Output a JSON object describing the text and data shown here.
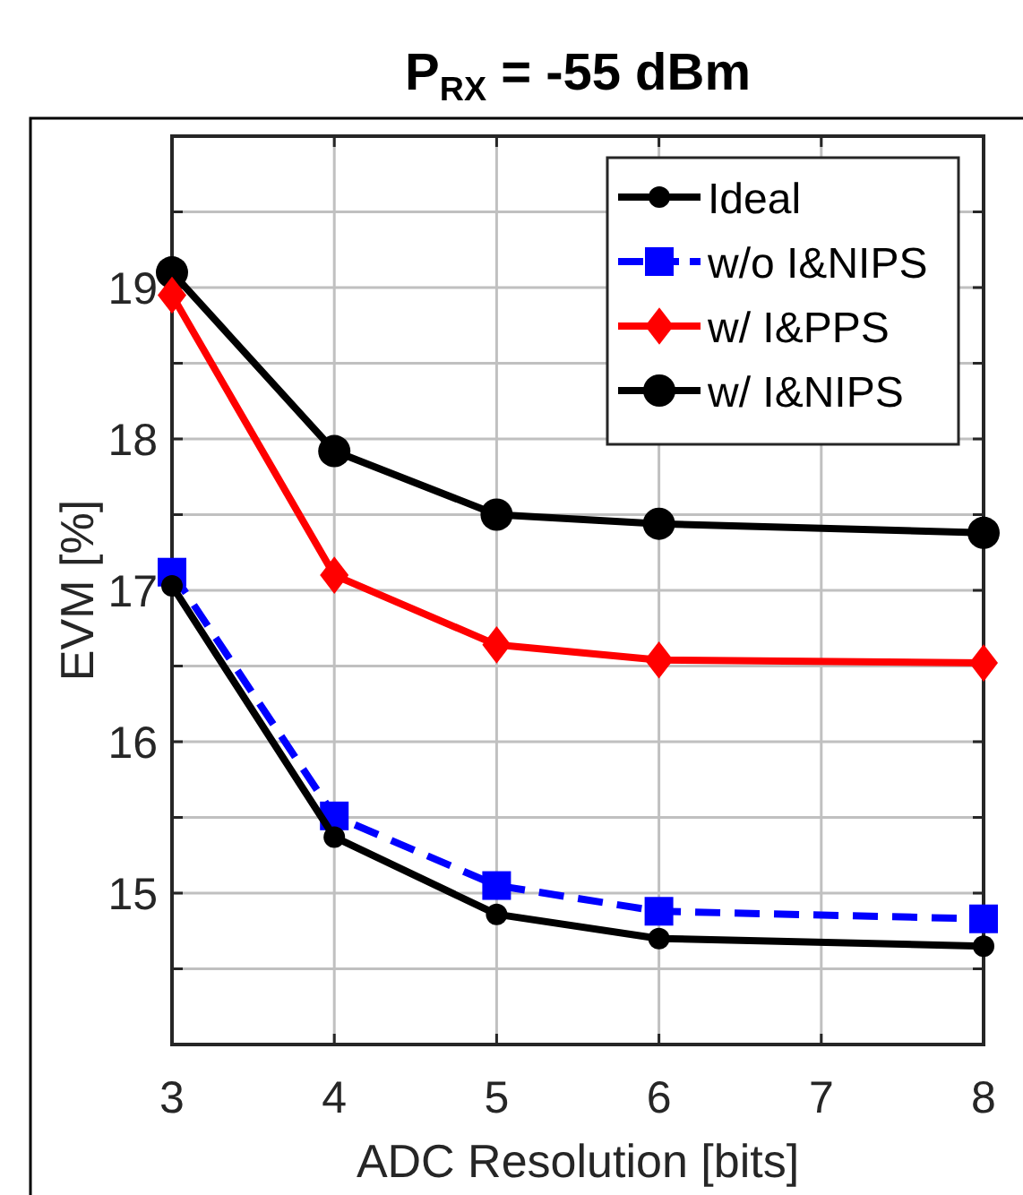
{
  "chart_data": {
    "type": "line",
    "title": "P$_{RX}$ = -55 dBm",
    "xlabel": "ADC Resolution [bits]",
    "ylabel": "EVM [%]",
    "x": [
      3,
      4,
      5,
      6,
      8
    ],
    "series": [
      {
        "name": "Ideal",
        "color": "#000000",
        "values": [
          17.03,
          15.37,
          14.86,
          14.7,
          14.65
        ],
        "marker": "circle",
        "line_style": "solid"
      },
      {
        "name": "w/o I&NIPS",
        "color": "#0000ff",
        "values": [
          17.12,
          15.51,
          15.05,
          14.88,
          14.83
        ],
        "marker": "square",
        "line_style": "dashed"
      },
      {
        "name": "w/ I&PPS",
        "color": "#ff0000",
        "values": [
          18.95,
          17.1,
          16.64,
          16.54,
          16.52
        ],
        "marker": "diamond",
        "line_style": "solid"
      },
      {
        "name": "w/ I&NIPS",
        "color": "#000000",
        "values": [
          19.1,
          17.92,
          17.5,
          17.44,
          17.38
        ],
        "marker": "circle",
        "line_style": "solid"
      }
    ],
    "xlim": [
      3,
      8
    ],
    "xticks": [
      3,
      4,
      5,
      6,
      7,
      8
    ],
    "ylim": [
      14,
      20
    ],
    "yticks": [
      {
        "value": 14.5,
        "label": null
      },
      15,
      {
        "value": 15.5,
        "label": null
      },
      16,
      {
        "value": 16.5,
        "label": null
      },
      17,
      {
        "value": 17.5,
        "label": null
      },
      18,
      {
        "value": 18.5,
        "label": null
      },
      19,
      {
        "value": 19.5,
        "label": null
      }
    ],
    "grid": true,
    "legend": "top right"
  }
}
